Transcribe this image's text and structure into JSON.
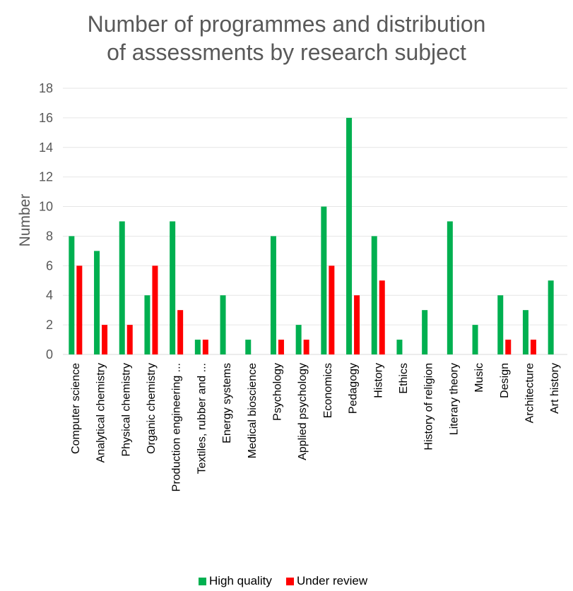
{
  "chart_data": {
    "type": "bar",
    "title_lines": [
      "Number of programmes and distribution",
      "of assessments by research subject"
    ],
    "ylabel": "Number",
    "xlabel": "",
    "ylim": [
      0,
      18
    ],
    "yticks": [
      0,
      2,
      4,
      6,
      8,
      10,
      12,
      14,
      16,
      18
    ],
    "grid": true,
    "legend_position": "bottom",
    "categories": [
      "Computer science",
      "Analytical chemistry",
      "Physical chemistry",
      "Organic chemistry",
      "Production engineering ...",
      "Textiles, rubber and ...",
      "Energy systems",
      "Medical bioscience",
      "Psychology",
      "Applied psychology",
      "Economics",
      "Pedagogy",
      "History",
      "Ethics",
      "History of religion",
      "Literary theory",
      "Music",
      "Design",
      "Architecture",
      "Art history"
    ],
    "series": [
      {
        "name": "High quality",
        "color": "#00b050",
        "values": [
          8,
          7,
          9,
          4,
          9,
          1,
          4,
          1,
          8,
          2,
          10,
          16,
          8,
          1,
          3,
          9,
          2,
          4,
          3,
          5
        ]
      },
      {
        "name": "Under review",
        "color": "#ff0000",
        "values": [
          6,
          2,
          2,
          6,
          3,
          1,
          0,
          0,
          1,
          1,
          6,
          4,
          5,
          0,
          0,
          0,
          0,
          1,
          1,
          0
        ]
      }
    ]
  }
}
